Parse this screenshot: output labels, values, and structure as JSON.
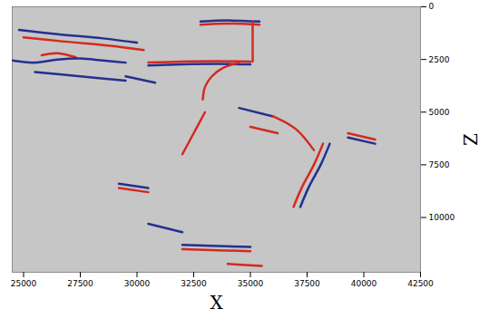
{
  "chart_data": {
    "type": "line",
    "x_label": "X",
    "y_label": "Z",
    "xlim": [
      24500,
      42500
    ],
    "xticks": [
      25000,
      27500,
      30000,
      32500,
      35000,
      37500,
      40000,
      42500
    ],
    "ylim": [
      0,
      12600
    ],
    "yticks": [
      0,
      2500,
      5000,
      7500,
      10000
    ],
    "series": [
      {
        "color": "#d42a20",
        "x": [
          25800,
          26500,
          27300
        ],
        "values": [
          2300,
          2200,
          2400
        ]
      },
      {
        "color": "#23308f",
        "x": [
          24500,
          25500,
          26500,
          27500,
          28500,
          29500
        ],
        "values": [
          2550,
          2650,
          2500,
          2450,
          2550,
          2650
        ]
      },
      {
        "color": "#23308f",
        "x": [
          24800,
          26500,
          28500,
          30000
        ],
        "values": [
          1100,
          1300,
          1500,
          1700
        ]
      },
      {
        "color": "#d42a20",
        "x": [
          25000,
          26800,
          28800,
          30300
        ],
        "values": [
          1450,
          1650,
          1850,
          2050
        ]
      },
      {
        "color": "#23308f",
        "x": [
          25500,
          27500,
          29500
        ],
        "values": [
          3100,
          3300,
          3500
        ]
      },
      {
        "color": "#23308f",
        "x": [
          32800,
          34000,
          35400
        ],
        "values": [
          700,
          650,
          700
        ]
      },
      {
        "color": "#d42a20",
        "x": [
          32800,
          34000,
          35400
        ],
        "values": [
          850,
          800,
          850
        ]
      },
      {
        "color": "#d42a20",
        "x": [
          35100,
          35100
        ],
        "values": [
          700,
          2600
        ]
      },
      {
        "color": "#d42a20",
        "x": [
          30500,
          32000,
          33500,
          35000
        ],
        "values": [
          2650,
          2600,
          2580,
          2600
        ]
      },
      {
        "color": "#23308f",
        "x": [
          30500,
          32000,
          33500,
          35000
        ],
        "values": [
          2780,
          2730,
          2710,
          2730
        ]
      },
      {
        "color": "#d42a20",
        "x": [
          32900,
          33000,
          33300,
          33800,
          34500
        ],
        "values": [
          4400,
          3800,
          3300,
          2900,
          2650
        ]
      },
      {
        "color": "#23308f",
        "x": [
          29500,
          30800
        ],
        "values": [
          3300,
          3600
        ]
      },
      {
        "color": "#23308f",
        "x": [
          34500,
          36000
        ],
        "values": [
          4800,
          5200
        ]
      },
      {
        "color": "#d42a20",
        "x": [
          35000,
          36200
        ],
        "values": [
          5700,
          6000
        ]
      },
      {
        "color": "#23308f",
        "x": [
          29200,
          30500
        ],
        "values": [
          8400,
          8600
        ]
      },
      {
        "color": "#d42a20",
        "x": [
          29200,
          30500
        ],
        "values": [
          8600,
          8800
        ]
      },
      {
        "color": "#d42a20",
        "x": [
          36900,
          37300,
          37800,
          38200
        ],
        "values": [
          9500,
          8500,
          7500,
          6500
        ]
      },
      {
        "color": "#23308f",
        "x": [
          37200,
          37600,
          38100,
          38500
        ],
        "values": [
          9500,
          8500,
          7500,
          6500
        ]
      },
      {
        "color": "#d42a20",
        "x": [
          39300,
          40500
        ],
        "values": [
          6000,
          6300
        ]
      },
      {
        "color": "#23308f",
        "x": [
          39300,
          40500
        ],
        "values": [
          6200,
          6500
        ]
      },
      {
        "color": "#23308f",
        "x": [
          32000,
          35000
        ],
        "values": [
          11300,
          11400
        ]
      },
      {
        "color": "#d42a20",
        "x": [
          32000,
          35000
        ],
        "values": [
          11500,
          11600
        ]
      },
      {
        "color": "#d42a20",
        "x": [
          34000,
          35500
        ],
        "values": [
          12200,
          12300
        ]
      },
      {
        "color": "#23308f",
        "x": [
          30500,
          32000
        ],
        "values": [
          10300,
          10700
        ]
      },
      {
        "color": "#d42a20",
        "x": [
          33000,
          32500,
          32000
        ],
        "values": [
          5000,
          6000,
          7000
        ]
      },
      {
        "color": "#d42a20",
        "x": [
          36000,
          37000,
          37800
        ],
        "values": [
          5200,
          5800,
          6800
        ]
      }
    ]
  }
}
